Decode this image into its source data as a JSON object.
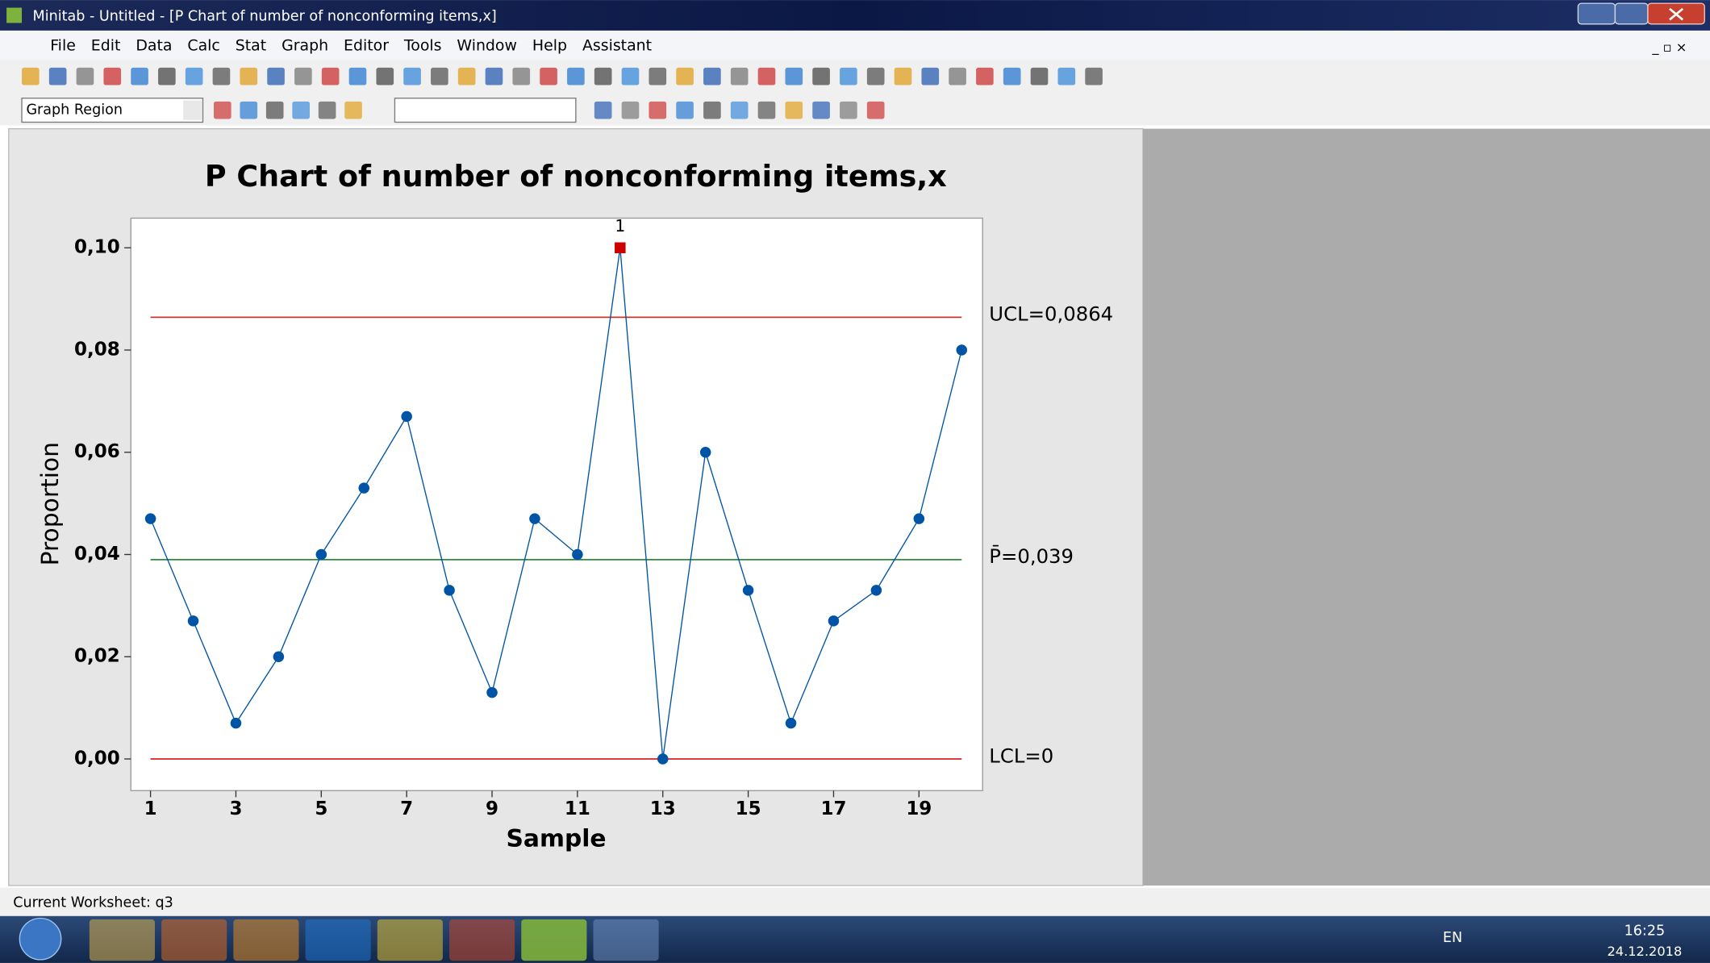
{
  "window": {
    "title": "Minitab - Untitled - [P Chart of number of nonconforming items,x]"
  },
  "menu": [
    "File",
    "Edit",
    "Data",
    "Calc",
    "Stat",
    "Graph",
    "Editor",
    "Tools",
    "Window",
    "Help",
    "Assistant"
  ],
  "toolbar": {
    "region_select": "Graph Region"
  },
  "chart_data": {
    "type": "line",
    "title": "P Chart of number of nonconforming items,x",
    "xlabel": "Sample",
    "ylabel": "Proportion",
    "x": [
      1,
      2,
      3,
      4,
      5,
      6,
      7,
      8,
      9,
      10,
      11,
      12,
      13,
      14,
      15,
      16,
      17,
      18,
      19,
      20
    ],
    "values": [
      0.047,
      0.027,
      0.007,
      0.02,
      0.04,
      0.053,
      0.067,
      0.033,
      0.013,
      0.047,
      0.04,
      0.1,
      0,
      0.06,
      0.033,
      0.007,
      0.027,
      0.033,
      0.047,
      0.08
    ],
    "color": "#0054a6",
    "flag_color": "#cc0000",
    "xlim": [
      0.54,
      20.49
    ],
    "ylim": [
      -0.0062,
      0.1058
    ],
    "xticks": [
      1,
      3,
      5,
      7,
      9,
      11,
      13,
      15,
      17,
      19
    ],
    "yticks": [
      {
        "value": 0,
        "label": "0,00"
      },
      {
        "value": 0.02,
        "label": "0,02"
      },
      {
        "value": 0.04,
        "label": "0,04"
      },
      {
        "value": 0.06,
        "label": "0,06"
      },
      {
        "value": 0.08,
        "label": "0,08"
      },
      {
        "value": 0.1,
        "label": "0,10"
      }
    ],
    "reference_lines": [
      {
        "label": "UCL=0,0864",
        "value": 0.0864,
        "color": "#c0392b"
      },
      {
        "label": "P̄=0,039",
        "value": 0.039,
        "color": "#2e8b3a"
      },
      {
        "label": "LCL=0",
        "value": 0,
        "color": "#d62020"
      }
    ],
    "annotations": [
      {
        "text": "1",
        "x": 12
      }
    ]
  },
  "status_bar": "Current Worksheet: q3",
  "taskbar": {
    "language": "EN",
    "time": "16:25",
    "date": "24.12.2018"
  }
}
